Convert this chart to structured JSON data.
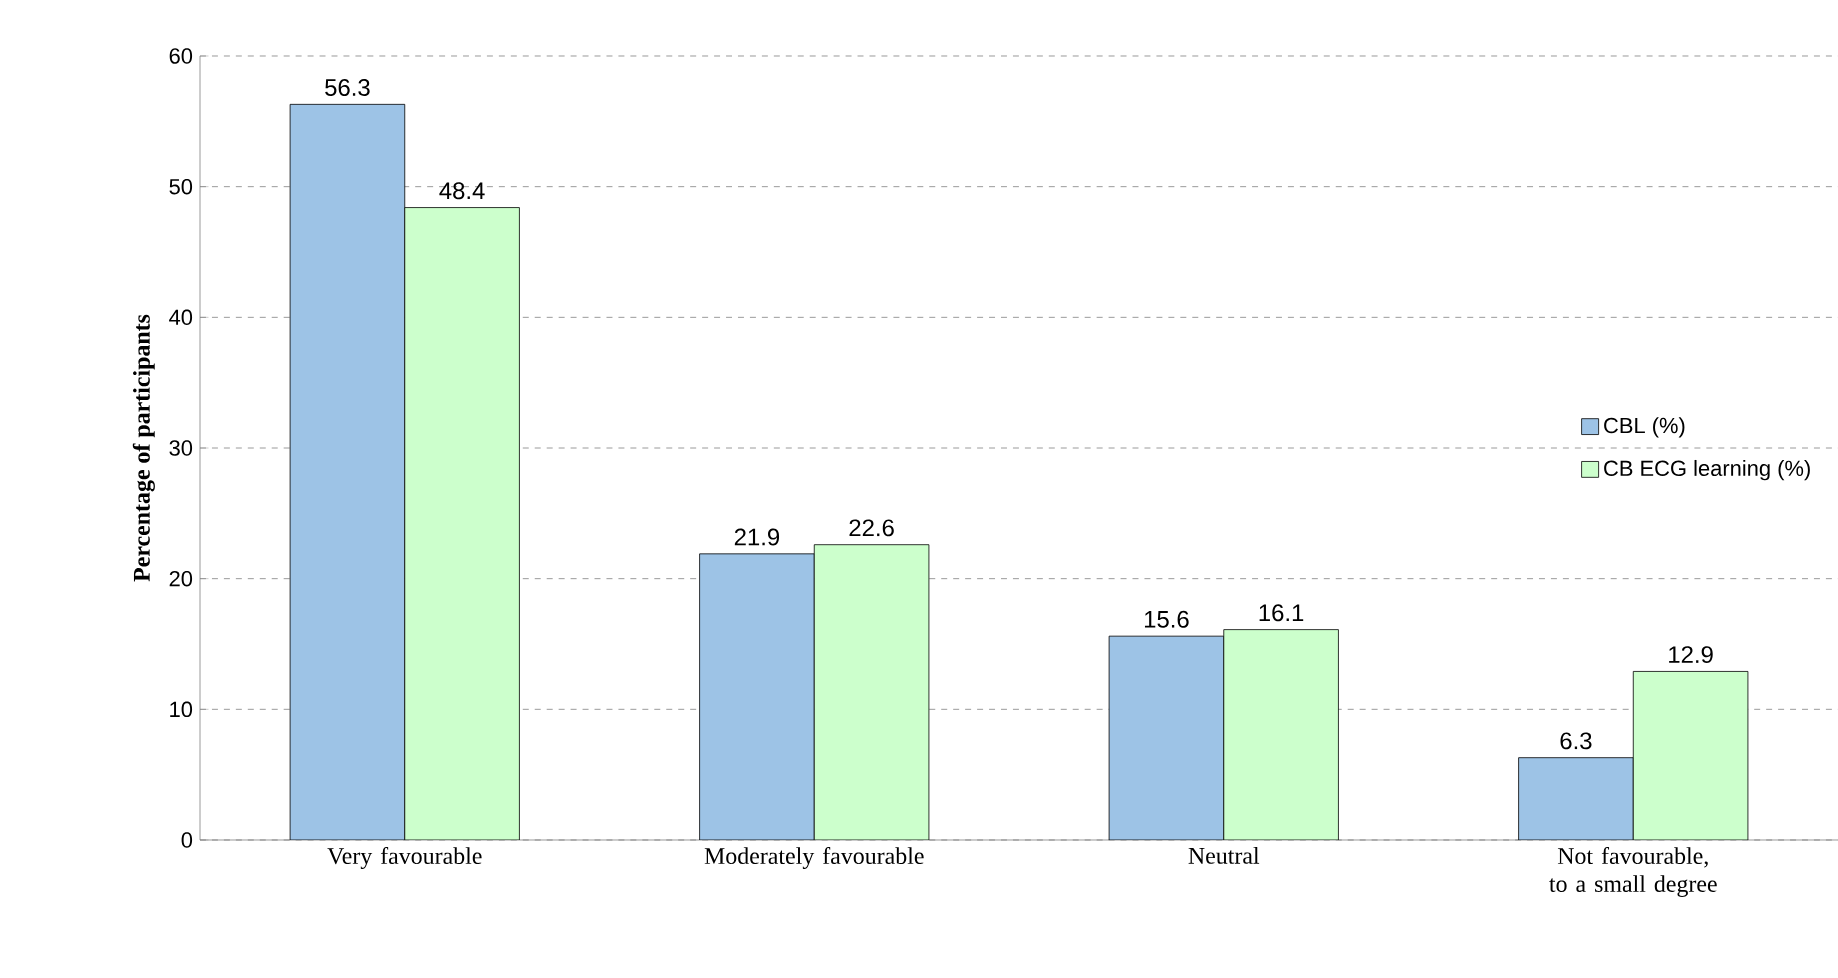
{
  "chart_data": {
    "type": "bar",
    "ylabel": "Percentage of participants",
    "categories": [
      "Very favourable",
      "Moderately favourable",
      "Neutral",
      "Not favourable, to a small degree"
    ],
    "series": [
      {
        "name": "CBL (%)",
        "color": "#9dc3e6",
        "values": [
          56.3,
          21.9,
          15.6,
          6.3
        ]
      },
      {
        "name": "CB ECG learning (%)",
        "color": "#ccffcc",
        "values": [
          48.4,
          22.6,
          16.1,
          12.9
        ]
      }
    ],
    "ylim": [
      0,
      60
    ],
    "yticks": [
      0,
      10,
      20,
      30,
      40,
      50,
      60
    ],
    "grid": "y",
    "legend": "right",
    "data_labels": true
  }
}
